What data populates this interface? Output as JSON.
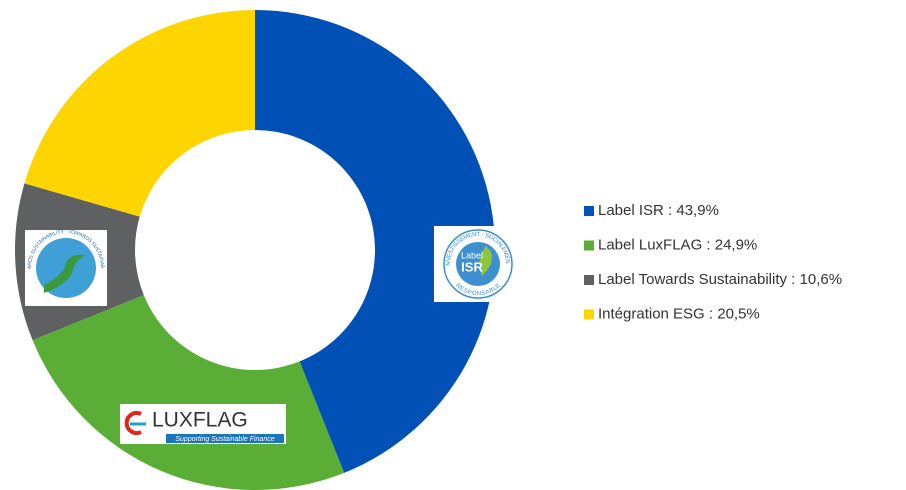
{
  "chart_data": {
    "type": "donut",
    "categories": [
      "Label ISR : 43,9%",
      "Label LuxFLAG : 24,9%",
      "Label Towards Sustainability : 10,6%",
      "Intégration ESG : 20,5%"
    ],
    "values": [
      43.9,
      24.9,
      10.6,
      20.5
    ],
    "colors": [
      "#0050b5",
      "#5aad35",
      "#5f6062",
      "#ffd500"
    ],
    "legend": "right",
    "logos": {
      "isr": {
        "top": "INVESTISSEMENT · SOCIALEMENT",
        "bottom": "RESPONSABLE",
        "label": "Label",
        "name": "ISR"
      },
      "luxflag": {
        "name": "LUXFLAG",
        "tagline": "Supporting Sustainable Finance"
      },
      "towards": {
        "ring": "TOWARDS SUSTAINABILITY · TOWARDS SUSTAINABILITY"
      }
    }
  }
}
